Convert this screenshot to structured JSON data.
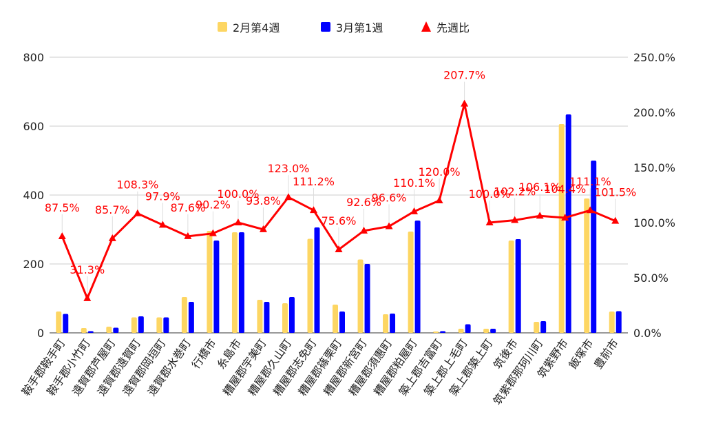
{
  "colors": {
    "bar1": "#FDD663",
    "bar2": "#0000FF",
    "line": "#FF0000",
    "label": "#FF0000",
    "grid": "#CCCCCC",
    "axis_text": "#222222",
    "leader": "#DDDDDD"
  },
  "legend": {
    "items": [
      {
        "label": "2月第4週",
        "shape": "square",
        "color": "#FDD663"
      },
      {
        "label": "3月第1週",
        "shape": "square",
        "color": "#0000FF"
      },
      {
        "label": "先週比",
        "shape": "triangle",
        "color": "#FF0000"
      }
    ]
  },
  "chart_data": {
    "type": "bar+line",
    "title": "",
    "categories": [
      "鞍手郡鞍手町",
      "鞍手郡小竹町",
      "遠賀郡芦屋町",
      "遠賀郡遠賀町",
      "遠賀郡岡垣町",
      "遠賀郡水巻町",
      "行橋市",
      "糸島市",
      "糟屋郡宇美町",
      "糟屋郡久山町",
      "糟屋郡志免町",
      "糟屋郡篠栗町",
      "糟屋郡新宮町",
      "糟屋郡須惠町",
      "糟屋郡粕屋町",
      "築上郡吉富町",
      "築上郡上毛町",
      "築上郡築上町",
      "筑後市",
      "筑紫郡那珂川町",
      "筑紫野市",
      "飯塚市",
      "豊前市"
    ],
    "series": [
      {
        "name": "2月第4週",
        "type": "bar",
        "axis": "left",
        "values": [
          62,
          14,
          18,
          45,
          45,
          104,
          296,
          292,
          96,
          86,
          273,
          82,
          213,
          54,
          294,
          4,
          12,
          12,
          268,
          32,
          606,
          390,
          62
        ]
      },
      {
        "name": "3月第1週",
        "type": "bar",
        "axis": "left",
        "values": [
          55,
          5,
          15,
          48,
          45,
          90,
          268,
          292,
          90,
          104,
          306,
          62,
          200,
          56,
          326,
          5,
          25,
          12,
          272,
          34,
          634,
          500,
          63
        ]
      },
      {
        "name": "先週比",
        "type": "line",
        "axis": "right",
        "values": [
          87.5,
          31.3,
          85.7,
          108.3,
          97.9,
          87.6,
          90.2,
          100.0,
          93.8,
          123.0,
          111.2,
          75.6,
          92.6,
          96.6,
          110.1,
          120.0,
          207.7,
          100.0,
          102.2,
          106.1,
          104.4,
          111.1,
          101.5
        ]
      }
    ],
    "data_labels": [
      "87.5%",
      "31.3%",
      "85.7%",
      "108.3%",
      "97.9%",
      "87.6%",
      "90.2%",
      "100.0%",
      "93.8%",
      "123.0%",
      "111.2%",
      "75.6%",
      "92.6%",
      "96.6%",
      "110.1%",
      "120.0%",
      "207.7%",
      "100.0%",
      "102.2%",
      "106.1%",
      "104.4%",
      "111.1%",
      "101.5%"
    ],
    "ylim_left": [
      0,
      800
    ],
    "yticks_left": [
      "0",
      "200",
      "400",
      "600",
      "800"
    ],
    "ylim_right": [
      0,
      250
    ],
    "yticks_right": [
      "0.0%",
      "50.0%",
      "100.0%",
      "150.0%",
      "200.0%",
      "250.0%"
    ],
    "grid": true,
    "legend_position": "top-center"
  }
}
